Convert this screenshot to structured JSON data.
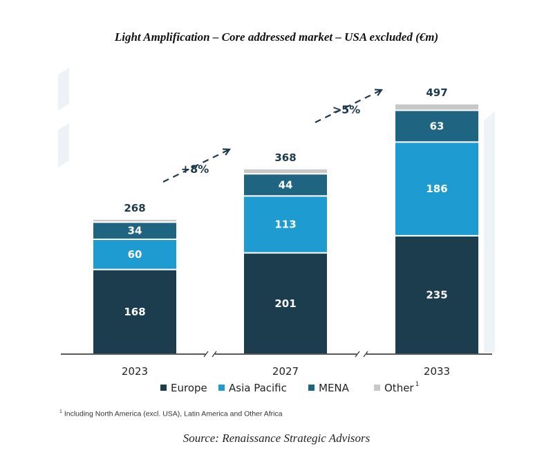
{
  "title": "Light Amplification – Core addressed market – USA excluded (€m)",
  "footnote": {
    "marker": "1",
    "text": "Including North America (excl. USA), Latin America and Other Africa"
  },
  "source": "Source: Renaissance Strategic Advisors",
  "colors": {
    "Europe": "#1c3d4e",
    "Asia Pacific": "#1e9bd0",
    "MENA": "#1f6480",
    "Other": "#c8c8c8",
    "axis": "#222222",
    "arrow": "#1c3a4a"
  },
  "chart_data": {
    "type": "bar",
    "stacked": true,
    "title": "Light Amplification – Core addressed market – USA excluded (€m)",
    "categories": [
      "2023",
      "2027",
      "2033"
    ],
    "series": [
      {
        "name": "Europe",
        "values": [
          168,
          201,
          235
        ],
        "labels": [
          "168",
          "201",
          "235"
        ]
      },
      {
        "name": "Asia Pacific",
        "values": [
          60,
          113,
          186
        ],
        "labels": [
          "60",
          "113",
          "186"
        ]
      },
      {
        "name": "MENA",
        "values": [
          34,
          44,
          63
        ],
        "labels": [
          "34",
          "44",
          "63"
        ]
      },
      {
        "name": "Other",
        "values": [
          6,
          10,
          13
        ],
        "labels": [
          "",
          "",
          ""
        ],
        "superscript": "1"
      }
    ],
    "totals": [
      268,
      368,
      497
    ],
    "total_labels": [
      "268",
      "368",
      "497"
    ],
    "growth_annotations": [
      {
        "from": "2023",
        "to": "2027",
        "label": "+8%"
      },
      {
        "from": "2027",
        "to": "2033",
        "label": ">5%"
      }
    ],
    "ylim": [
      0,
      497
    ],
    "grid": false,
    "axis_breaks": true,
    "legend_position": "bottom"
  }
}
